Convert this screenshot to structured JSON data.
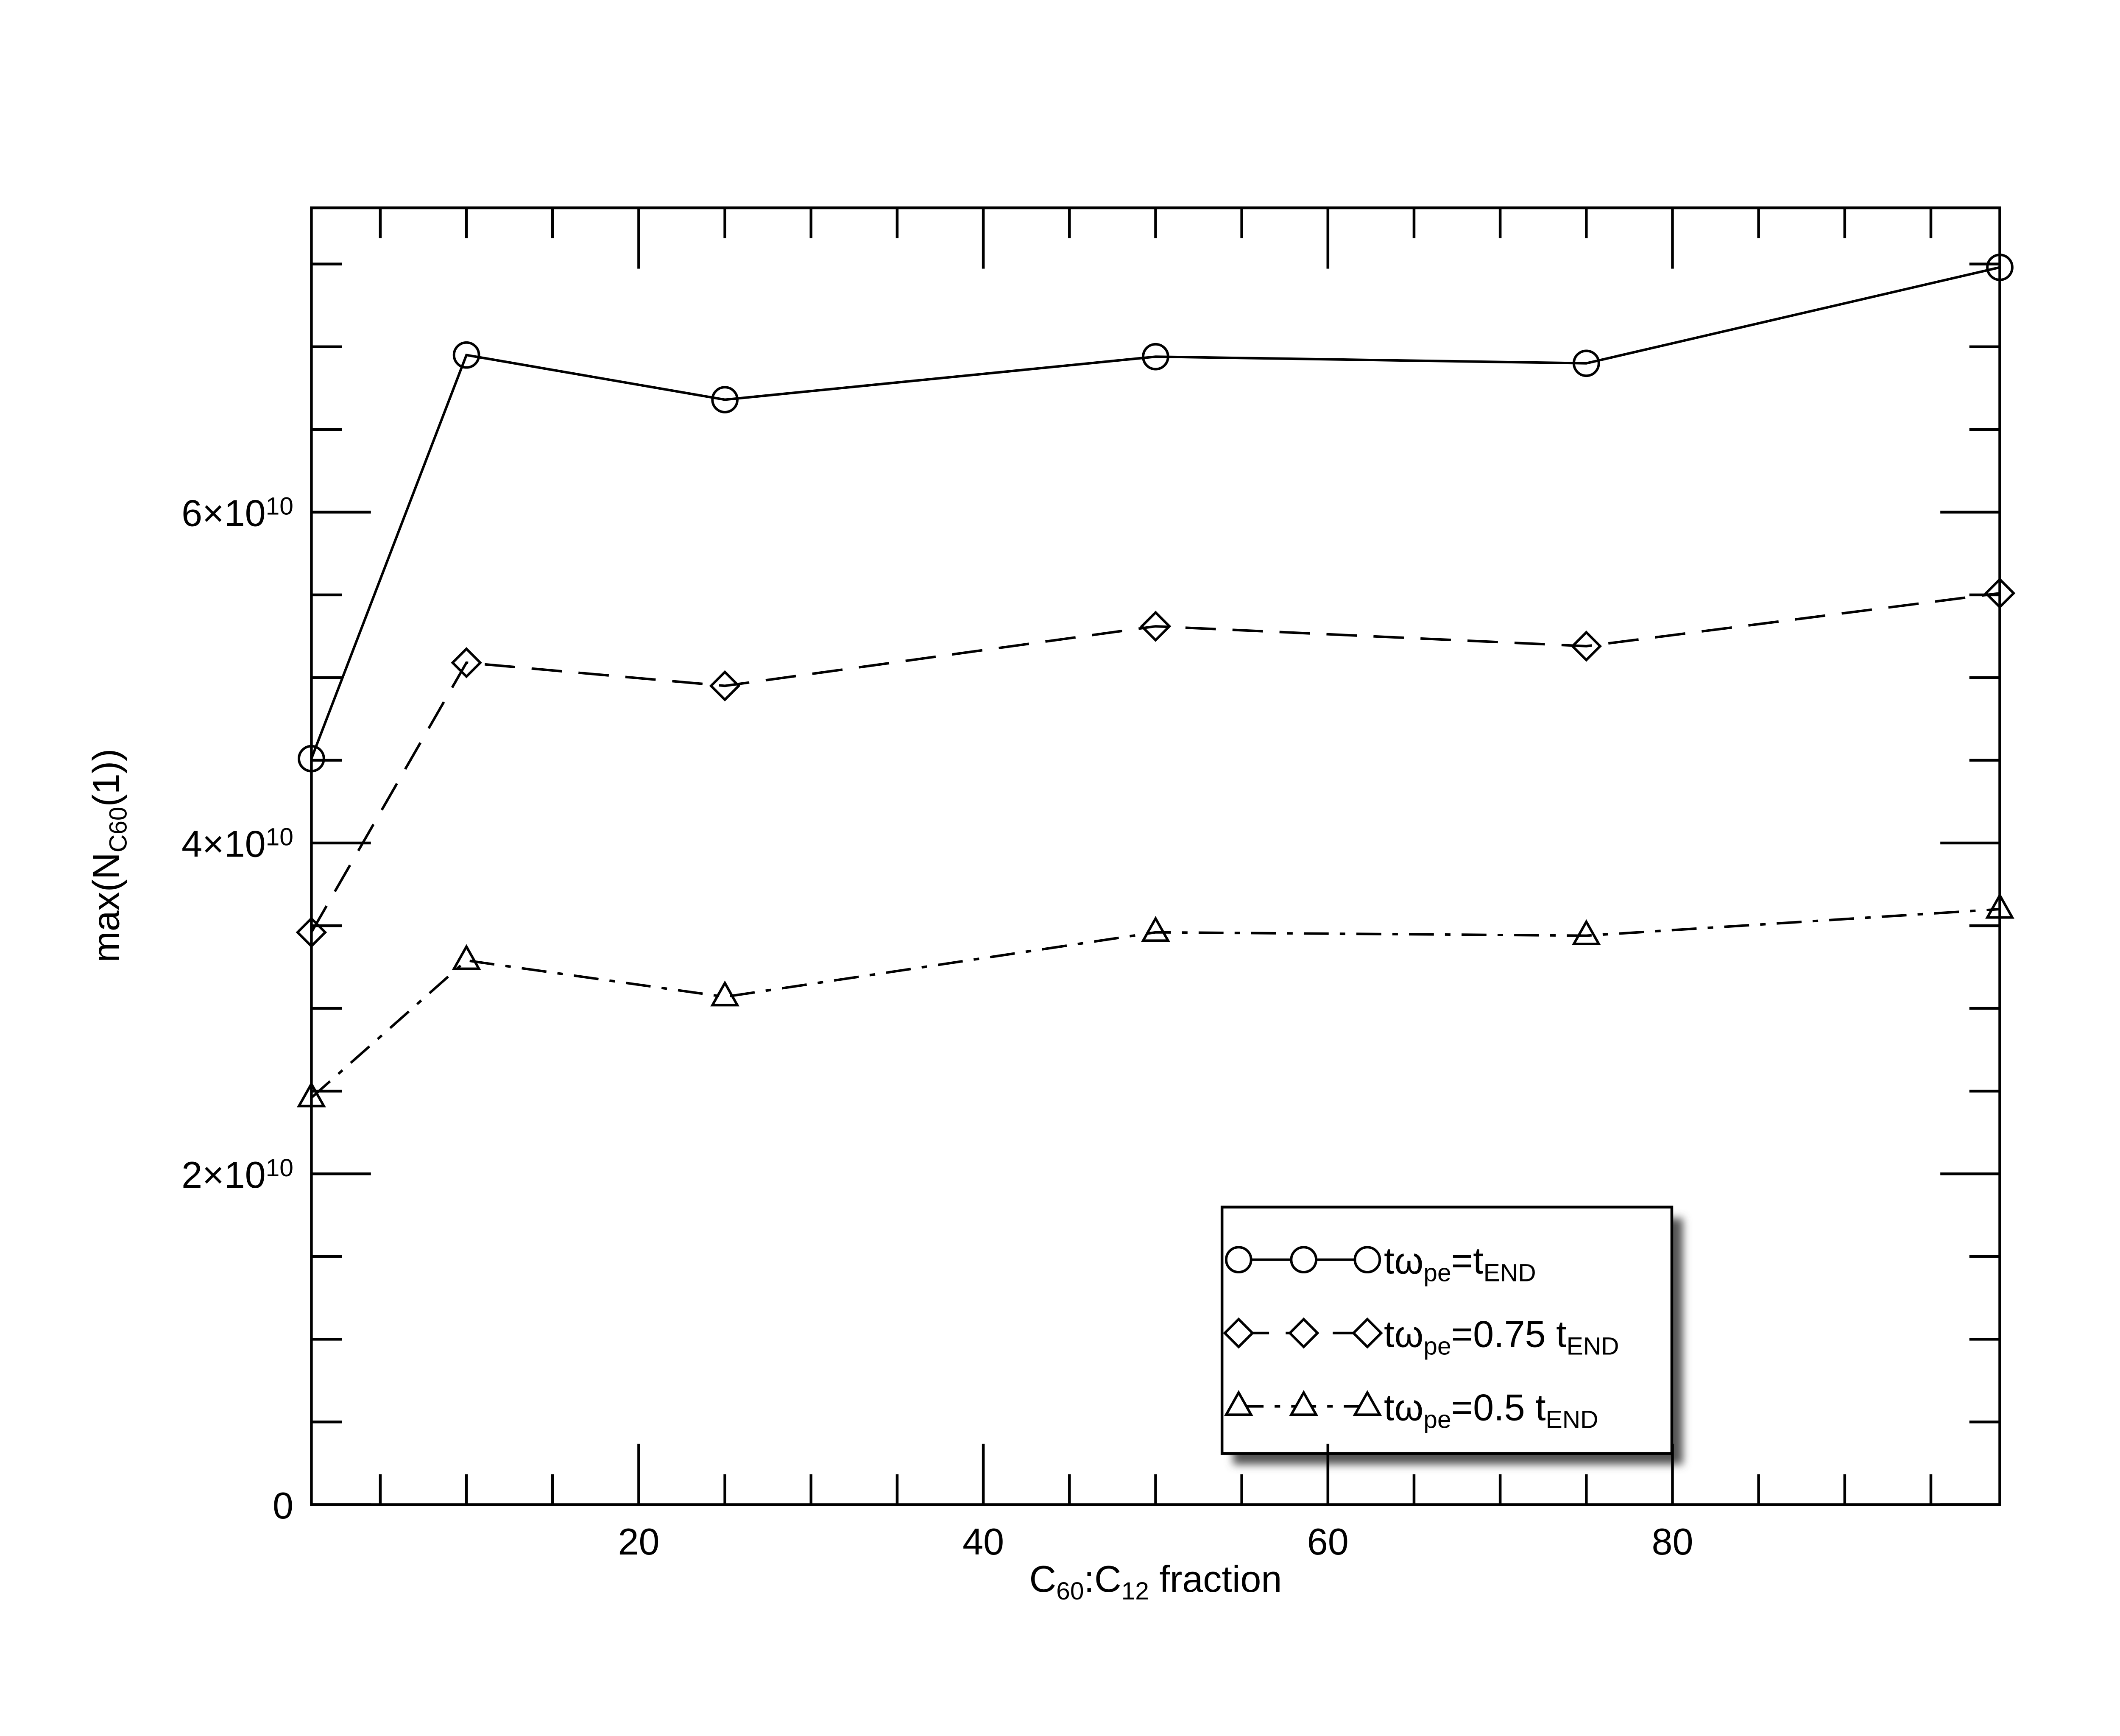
{
  "chart_data": {
    "type": "line",
    "x_label": [
      "C",
      {
        "sub": "60"
      },
      ":C",
      {
        "sub": "12"
      },
      " fraction"
    ],
    "y_label": [
      "max(N",
      {
        "sub": "C60"
      },
      "(1))"
    ],
    "x": [
      1,
      10,
      25,
      50,
      75,
      99
    ],
    "xlim": [
      1,
      99
    ],
    "xticks": [
      20,
      40,
      60,
      80
    ],
    "xminorticks": [
      5,
      10,
      15,
      25,
      30,
      35,
      45,
      50,
      55,
      65,
      70,
      75,
      85,
      90,
      95
    ],
    "ylim": [
      0,
      78400000000
    ],
    "yticks": [
      0,
      {
        "value": 20000000000,
        "label": "2×10",
        "exponent": "10"
      },
      {
        "value": 40000000000,
        "label": "4×10",
        "exponent": "10"
      },
      {
        "value": 60000000000,
        "label": "6×10",
        "exponent": "10"
      }
    ],
    "yminorticks": [
      5000000000,
      10000000000,
      15000000000,
      25000000000,
      30000000000,
      35000000000,
      45000000000,
      50000000000,
      55000000000,
      65000000000,
      70000000000,
      75000000000
    ],
    "legend": "lower right",
    "series": [
      {
        "name": [
          "tω",
          {
            "sub": "pe"
          },
          "=t",
          {
            "sub": "END"
          }
        ],
        "color": "#000000",
        "dash": "solid",
        "marker": "circle",
        "values": [
          45100000000,
          69500000000,
          66800000000,
          69400000000,
          69000000000,
          74800000000
        ]
      },
      {
        "name": [
          "tω",
          {
            "sub": "pe"
          },
          "=0.75 t",
          {
            "sub": "END"
          }
        ],
        "color": "#000000",
        "dash": "dashed",
        "marker": "diamond",
        "values": [
          34600000000,
          50900000000,
          49500000000,
          53100000000,
          51900000000,
          55100000000
        ]
      },
      {
        "name": [
          "tω",
          {
            "sub": "pe"
          },
          "=0.5 t",
          {
            "sub": "END"
          }
        ],
        "color": "#000000",
        "dash": "dashdot",
        "marker": "triangle",
        "values": [
          24600000000,
          32900000000,
          30700000000,
          34600000000,
          34400000000,
          36000000000
        ]
      }
    ]
  }
}
